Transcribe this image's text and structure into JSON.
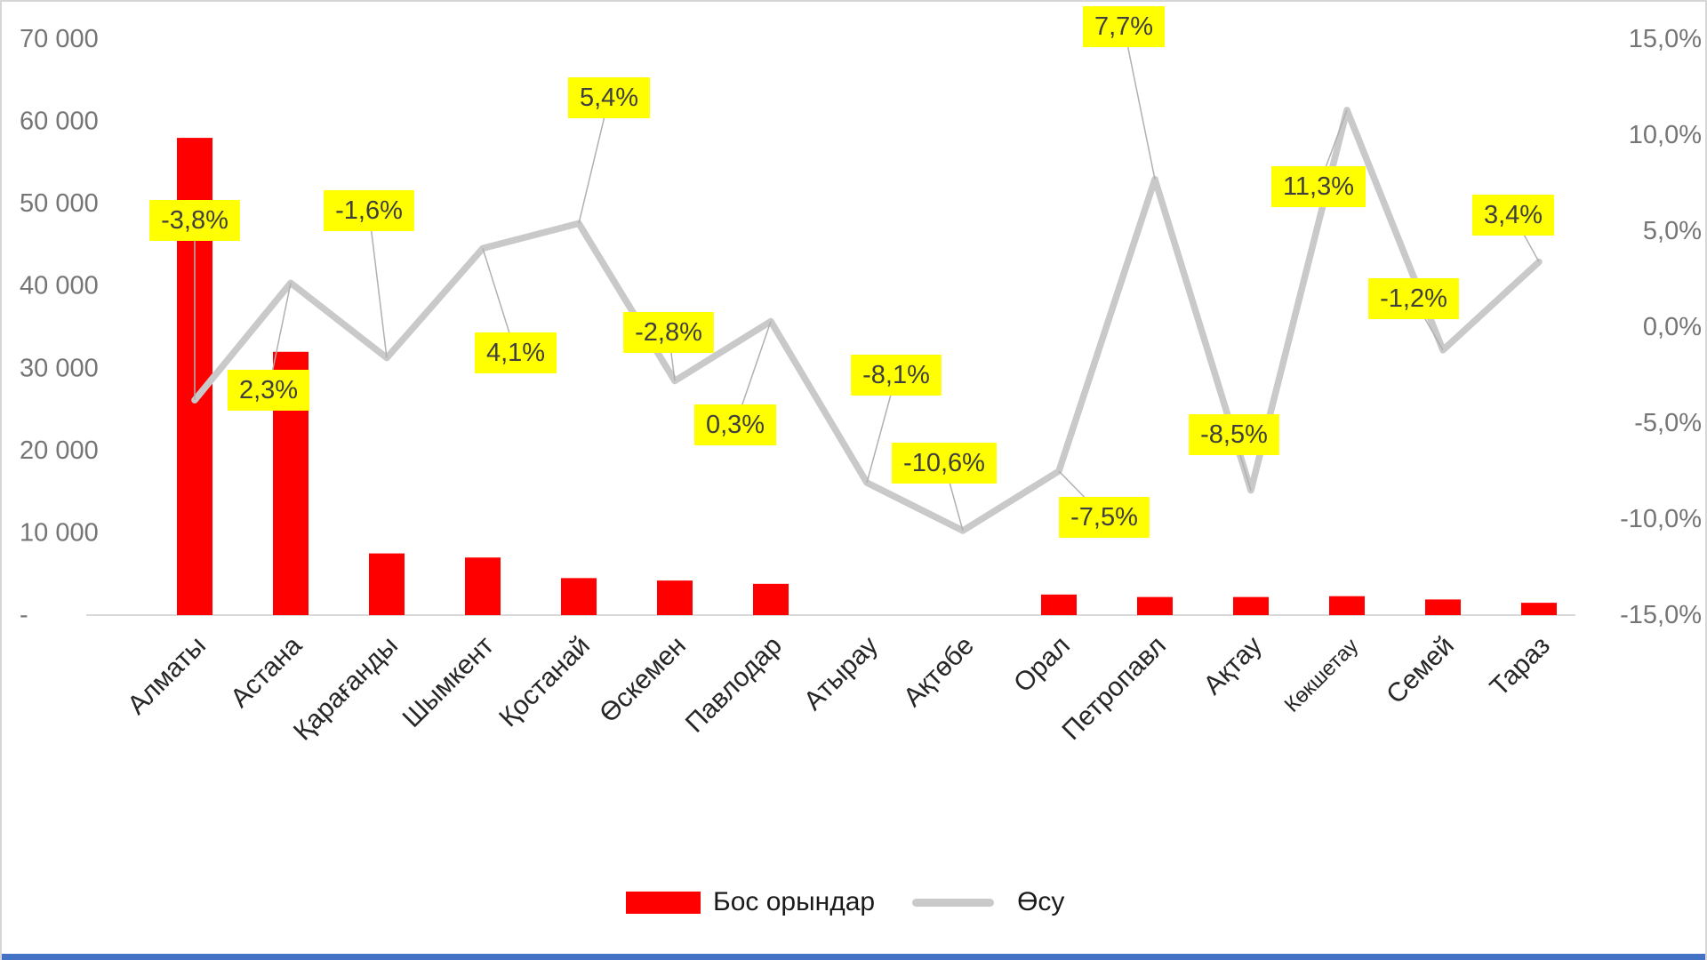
{
  "chart_data": {
    "type": "combo-bar-line",
    "categories": [
      "Алматы",
      "Астана",
      "Қарағанды",
      "Шымкент",
      "Қостанай",
      "Өскемен",
      "Павлодар",
      "Атырау",
      "Ақтөбе",
      "Орал",
      "Петропавл",
      "Ақтау",
      "Көкшетау",
      "Семей",
      "Тараз"
    ],
    "series": [
      {
        "name": "Бос орындар",
        "type": "bar",
        "axis": "left",
        "color": "#ff0000",
        "values": [
          58000,
          32000,
          7500,
          7000,
          4500,
          4200,
          3800,
          null,
          null,
          2500,
          2200,
          2200,
          2300,
          1900,
          1500
        ]
      },
      {
        "name": "Өсу",
        "type": "line",
        "axis": "right",
        "color": "#c9c9c9",
        "values": [
          -3.8,
          2.3,
          -1.6,
          4.1,
          5.4,
          -2.8,
          0.3,
          -8.1,
          -10.6,
          -7.5,
          7.7,
          -8.5,
          11.3,
          -1.2,
          3.4
        ],
        "labels": [
          "-3,8%",
          "2,3%",
          "-1,6%",
          "4,1%",
          "5,4%",
          "-2,8%",
          "0,3%",
          "-8,1%",
          "-10,6%",
          "-7,5%",
          "7,7%",
          "-8,5%",
          "11,3%",
          "-1,2%",
          "3,4%"
        ]
      }
    ],
    "left_axis": {
      "min": 0,
      "max": 70000,
      "ticks": [
        "70 000",
        "60 000",
        "50 000",
        "40 000",
        "30 000",
        "20 000",
        "10 000",
        "-"
      ]
    },
    "right_axis": {
      "min": -15,
      "max": 15,
      "ticks": [
        "15,0%",
        "10,0%",
        "5,0%",
        "0,0%",
        "-5,0%",
        "-10,0%",
        "-15,0%"
      ]
    },
    "grid": "off",
    "legend_position": "bottom",
    "title": "",
    "xlabel": "",
    "ylabel": ""
  },
  "colors": {
    "bar": "#ff0000",
    "line": "#c9c9c9",
    "data_label_bg": "#ffff00",
    "data_label_text": "#3f3f3f",
    "axis_text": "#757575",
    "category_text": "#262626",
    "baseline": "#d9d9d9",
    "leader": "#b0b0b0",
    "bottom_strip": "#4472c4"
  },
  "legend": {
    "bar_label": "Бос орындар",
    "line_label": "Өсу"
  }
}
